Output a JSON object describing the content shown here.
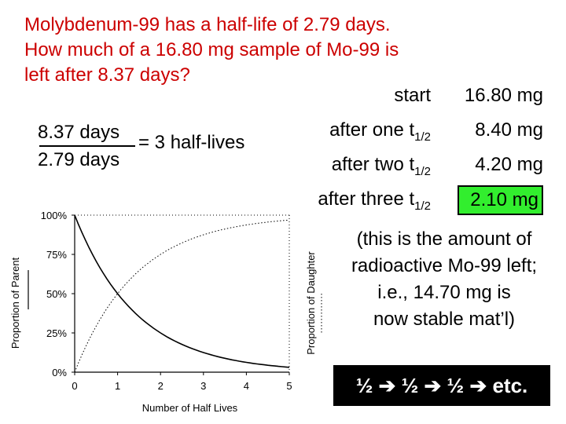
{
  "question": {
    "line1": "Molybdenum-99 has a half-life of 2.79 days.",
    "line2": "How much of a 16.80 mg sample of Mo-99 is",
    "line3": "left after 8.37 days?",
    "color": "#cc0000"
  },
  "fraction": {
    "numerator": "8.37 days",
    "denominator": "2.79 days",
    "result": "= 3 half-lives"
  },
  "steps": [
    {
      "label": "start",
      "sub": "",
      "value": "16.80 mg"
    },
    {
      "label": "after one t",
      "sub": "1/2",
      "value": "8.40 mg"
    },
    {
      "label": "after two t",
      "sub": "1/2",
      "value": "4.20 mg"
    },
    {
      "label": "after three t",
      "sub": "1/2",
      "value": "2.10 mg"
    }
  ],
  "highlight_color": "#32ee2e",
  "note": {
    "line1": "(this is the amount of",
    "line2": "radioactive Mo-99 left;",
    "line3": "i.e., 14.70 mg is",
    "line4": "now stable mat’l)"
  },
  "banner": "½ ➔ ½ ➔ ½ ➔ etc.",
  "chart_data": {
    "type": "line",
    "xlabel": "Number of Half Lives",
    "ylabel_left": "Proportion of Parent",
    "ylabel_right": "Proportion of Daughter",
    "x_ticks": [
      "0",
      "1",
      "2",
      "3",
      "4",
      "5"
    ],
    "y_ticks": [
      "0%",
      "25%",
      "50%",
      "75%",
      "100%"
    ],
    "xlim": [
      0,
      5
    ],
    "ylim": [
      0,
      100
    ],
    "x": [
      0,
      0.25,
      0.5,
      0.75,
      1,
      1.5,
      2,
      2.5,
      3,
      3.5,
      4,
      4.5,
      5
    ],
    "series": [
      {
        "name": "Proportion of Parent",
        "style": "solid",
        "values": [
          100,
          84.1,
          70.7,
          59.5,
          50,
          35.4,
          25,
          17.7,
          12.5,
          8.8,
          6.25,
          4.4,
          3.1
        ]
      },
      {
        "name": "Proportion of Daughter",
        "style": "dotted",
        "values": [
          0,
          15.9,
          29.3,
          40.5,
          50,
          64.6,
          75,
          82.3,
          87.5,
          91.2,
          93.75,
          95.6,
          96.9
        ]
      }
    ],
    "grid": false
  }
}
